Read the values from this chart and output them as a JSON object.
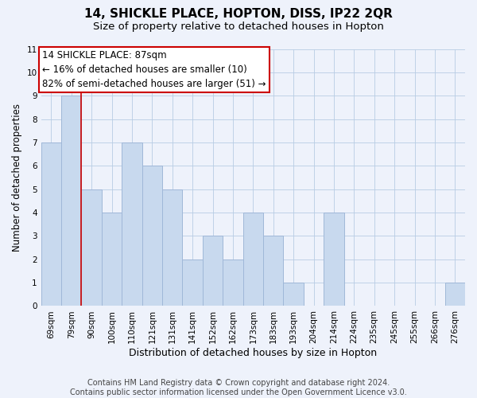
{
  "title": "14, SHICKLE PLACE, HOPTON, DISS, IP22 2QR",
  "subtitle": "Size of property relative to detached houses in Hopton",
  "xlabel": "Distribution of detached houses by size in Hopton",
  "ylabel": "Number of detached properties",
  "bar_color": "#c8d9ee",
  "bar_edge_color": "#a0b8d8",
  "grid_color": "#b8cce4",
  "categories": [
    "69sqm",
    "79sqm",
    "90sqm",
    "100sqm",
    "110sqm",
    "121sqm",
    "131sqm",
    "141sqm",
    "152sqm",
    "162sqm",
    "173sqm",
    "183sqm",
    "193sqm",
    "204sqm",
    "214sqm",
    "224sqm",
    "235sqm",
    "245sqm",
    "255sqm",
    "266sqm",
    "276sqm"
  ],
  "values": [
    7,
    9,
    5,
    4,
    7,
    6,
    5,
    2,
    3,
    2,
    4,
    3,
    1,
    0,
    4,
    0,
    0,
    0,
    0,
    0,
    1
  ],
  "ylim": [
    0,
    11
  ],
  "yticks": [
    0,
    1,
    2,
    3,
    4,
    5,
    6,
    7,
    8,
    9,
    10,
    11
  ],
  "annotation_line1": "14 SHICKLE PLACE: 87sqm",
  "annotation_line2": "← 16% of detached houses are smaller (10)",
  "annotation_line3": "82% of semi-detached houses are larger (51) →",
  "vline_color": "#cc0000",
  "footer_text": "Contains HM Land Registry data © Crown copyright and database right 2024.\nContains public sector information licensed under the Open Government Licence v3.0.",
  "background_color": "#eef2fb",
  "plot_bg_color": "#eef2fb",
  "title_fontsize": 11,
  "subtitle_fontsize": 9.5,
  "xlabel_fontsize": 9,
  "ylabel_fontsize": 8.5,
  "footer_fontsize": 7,
  "annotation_fontsize": 8.5,
  "tick_fontsize": 7.5
}
